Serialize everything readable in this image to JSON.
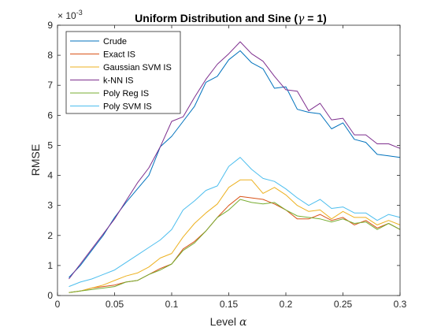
{
  "chart_data": {
    "type": "line",
    "title_main": "Uniform Distribution and Sine  (",
    "title_gamma": "γ",
    "title_tail": " = 1)",
    "xlabel_text": "Level ",
    "xlabel_symbol": "α",
    "ylabel": "RMSE",
    "exponent_base": "× 10",
    "exponent_power": "-3",
    "xlim": [
      0,
      0.3
    ],
    "ylim": [
      0,
      9
    ],
    "xticks": [
      "0",
      "0.05",
      "0.1",
      "0.15",
      "0.2",
      "0.25",
      "0.3"
    ],
    "yticks": [
      "0",
      "1",
      "2",
      "3",
      "4",
      "5",
      "6",
      "7",
      "8",
      "9"
    ],
    "legend_position": "top-left",
    "x": [
      0.01,
      0.02,
      0.03,
      0.04,
      0.05,
      0.06,
      0.07,
      0.08,
      0.09,
      0.1,
      0.11,
      0.12,
      0.13,
      0.14,
      0.15,
      0.16,
      0.17,
      0.18,
      0.19,
      0.2,
      0.21,
      0.22,
      0.23,
      0.24,
      0.25,
      0.26,
      0.27,
      0.28,
      0.29,
      0.3
    ],
    "series": [
      {
        "name": "Crude",
        "color": "#0072BD",
        "values": [
          0.6,
          1.0,
          1.5,
          2.0,
          2.6,
          3.1,
          3.55,
          4.0,
          4.95,
          5.3,
          5.8,
          6.3,
          7.1,
          7.3,
          7.85,
          8.15,
          7.75,
          7.55,
          6.9,
          6.95,
          6.2,
          6.1,
          6.05,
          5.55,
          5.75,
          5.2,
          5.1,
          4.7,
          4.65,
          4.6
        ]
      },
      {
        "name": "Exact IS",
        "color": "#D95319",
        "values": [
          0.1,
          0.15,
          0.25,
          0.3,
          0.35,
          0.45,
          0.5,
          0.7,
          0.9,
          1.05,
          1.55,
          1.8,
          2.15,
          2.6,
          3.0,
          3.3,
          3.25,
          3.2,
          3.05,
          2.85,
          2.55,
          2.55,
          2.7,
          2.5,
          2.6,
          2.35,
          2.5,
          2.25,
          2.4,
          2.2
        ]
      },
      {
        "name": "Gaussian SVM IS",
        "color": "#EDB120",
        "values": [
          0.1,
          0.15,
          0.25,
          0.35,
          0.5,
          0.65,
          0.75,
          0.95,
          1.25,
          1.4,
          1.95,
          2.4,
          2.75,
          3.05,
          3.6,
          3.85,
          3.85,
          3.4,
          3.6,
          3.35,
          3.0,
          2.8,
          2.85,
          2.55,
          2.8,
          2.6,
          2.6,
          2.35,
          2.5,
          2.35
        ]
      },
      {
        "name": "k-NN IS",
        "color": "#7E2F8E",
        "values": [
          0.55,
          1.05,
          1.55,
          2.05,
          2.55,
          3.15,
          3.75,
          4.25,
          4.95,
          5.8,
          5.95,
          6.6,
          7.2,
          7.7,
          8.05,
          8.45,
          8.05,
          7.8,
          7.3,
          6.85,
          6.8,
          6.15,
          6.4,
          5.85,
          5.9,
          5.35,
          5.35,
          5.05,
          5.05,
          4.9
        ]
      },
      {
        "name": "Poly Reg IS",
        "color": "#77AC30",
        "values": [
          0.1,
          0.15,
          0.2,
          0.25,
          0.3,
          0.45,
          0.5,
          0.7,
          0.85,
          1.05,
          1.5,
          1.75,
          2.15,
          2.6,
          2.85,
          3.2,
          3.1,
          3.05,
          3.1,
          2.85,
          2.65,
          2.6,
          2.55,
          2.45,
          2.55,
          2.4,
          2.45,
          2.2,
          2.4,
          2.2
        ]
      },
      {
        "name": "Poly SVM IS",
        "color": "#4DBEEE",
        "values": [
          0.3,
          0.45,
          0.55,
          0.7,
          0.85,
          1.1,
          1.35,
          1.6,
          1.85,
          2.2,
          2.85,
          3.15,
          3.5,
          3.65,
          4.3,
          4.6,
          4.2,
          3.9,
          3.8,
          3.55,
          3.25,
          3.0,
          3.2,
          2.9,
          2.95,
          2.75,
          2.75,
          2.5,
          2.7,
          2.6
        ]
      }
    ]
  }
}
